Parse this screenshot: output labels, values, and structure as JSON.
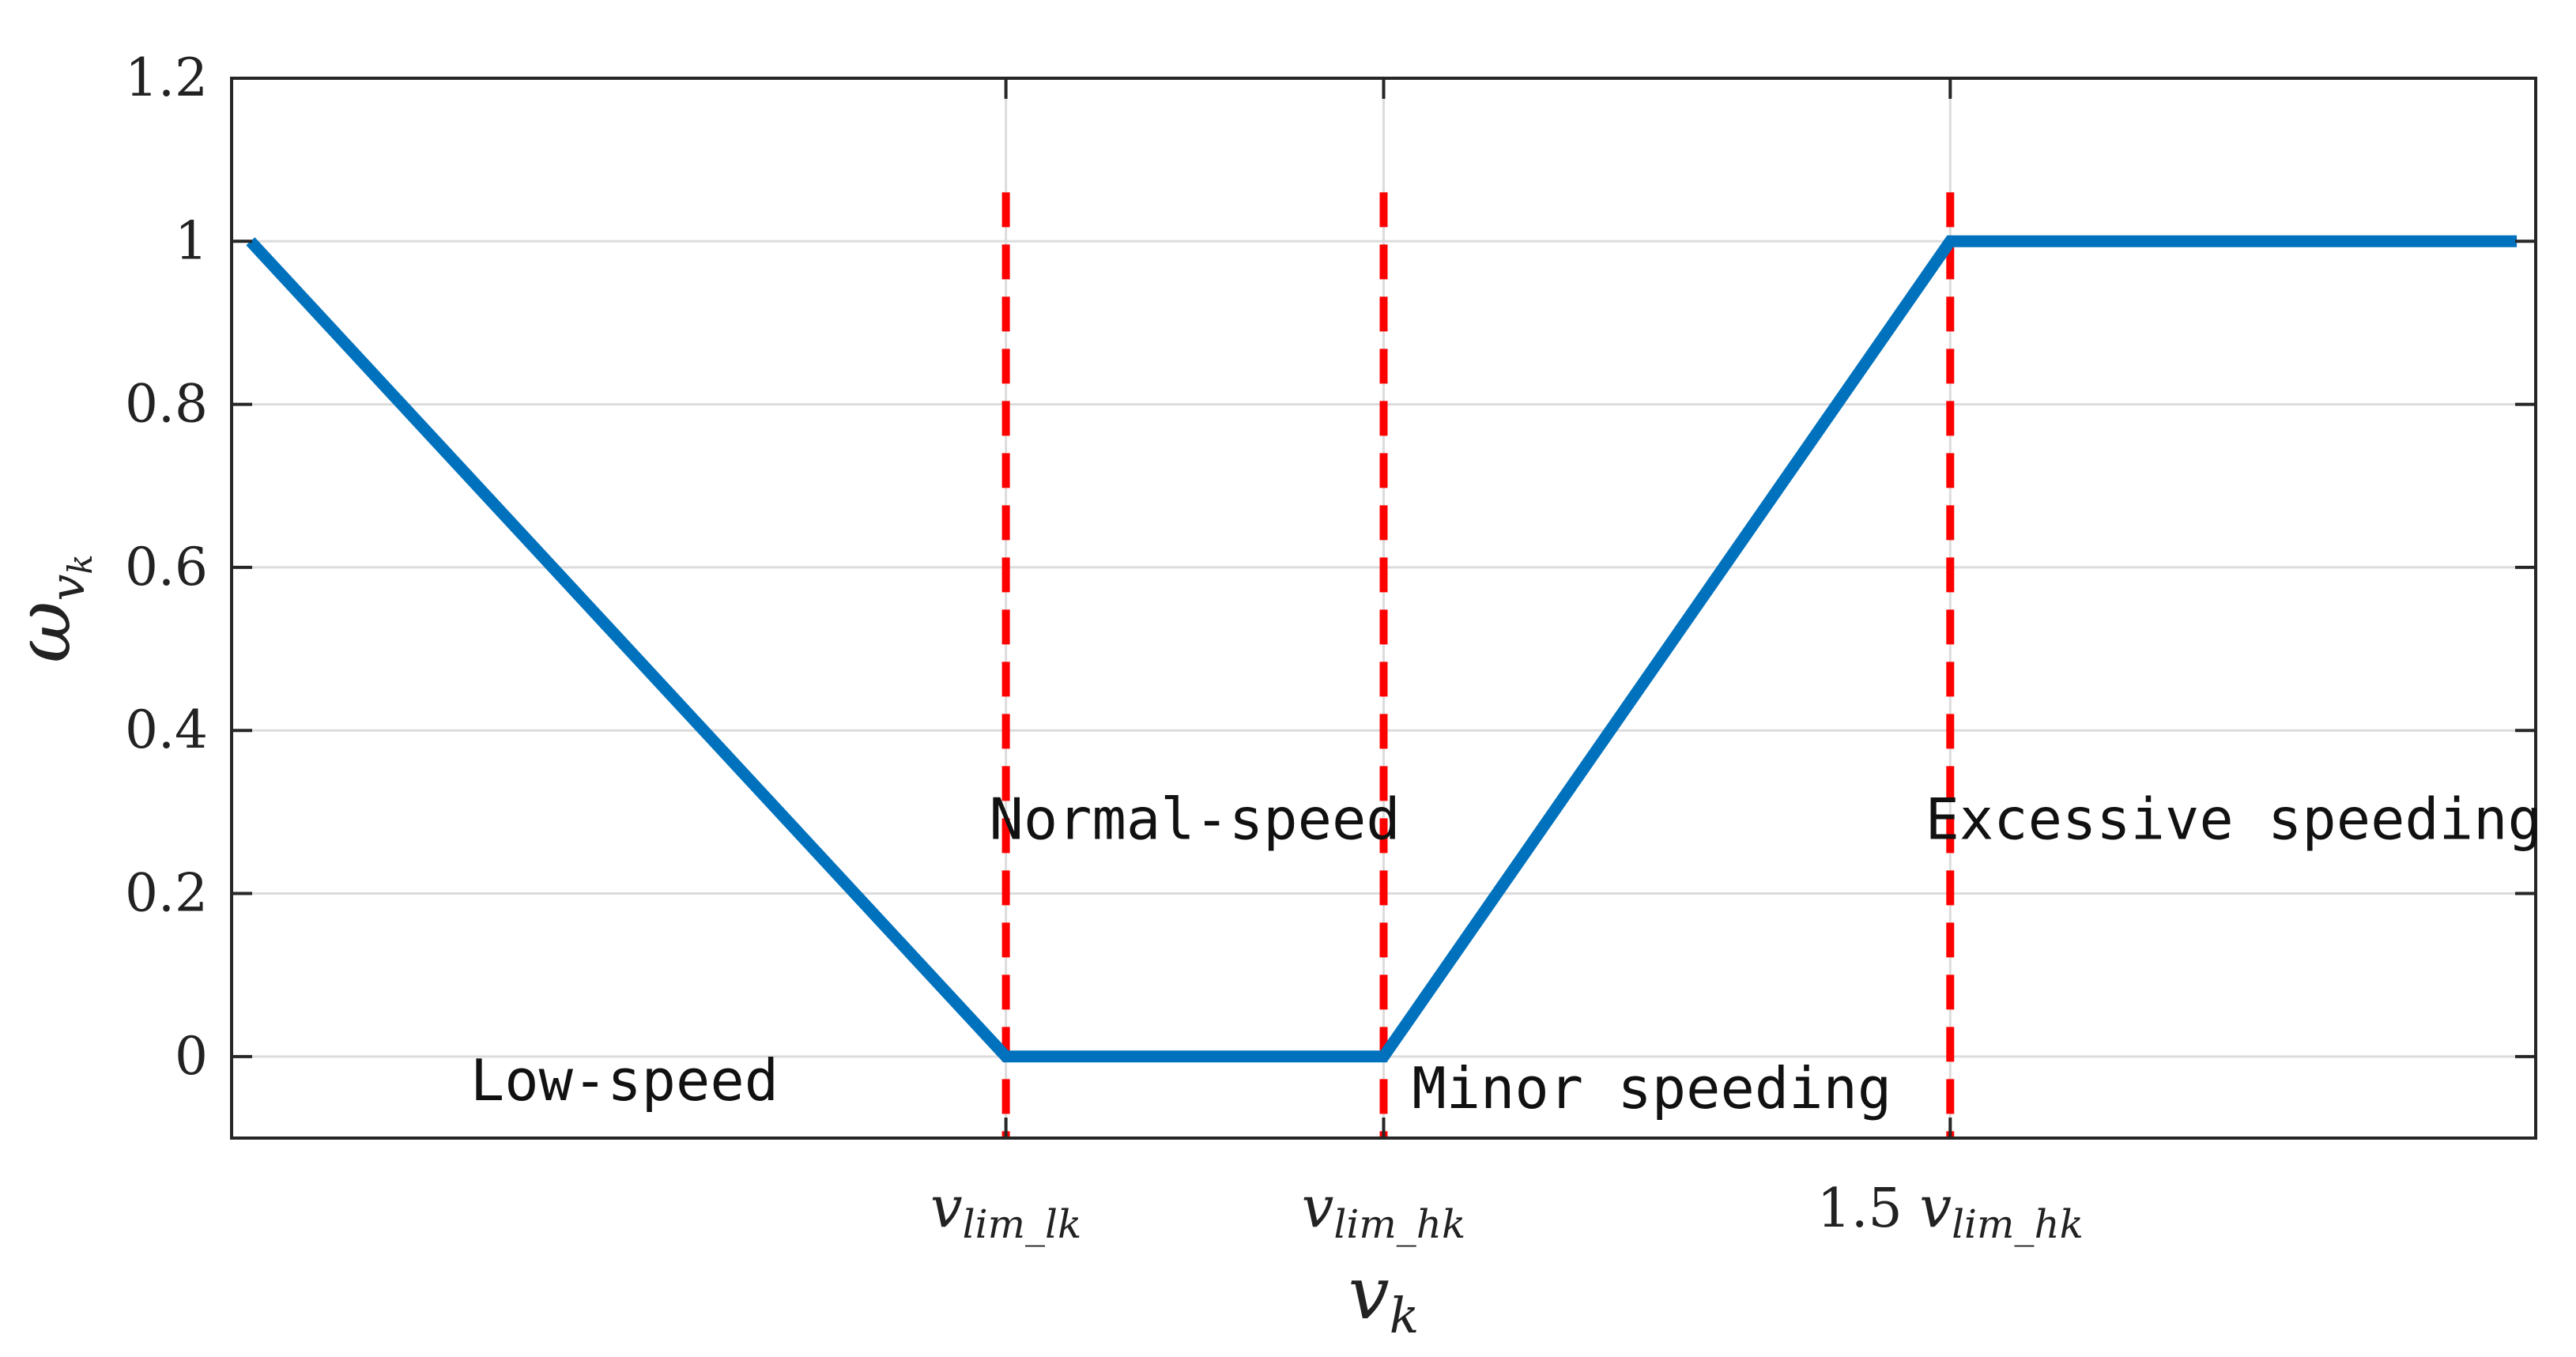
{
  "chart_data": {
    "type": "line",
    "title": "",
    "xlabel": {
      "base": "v",
      "sub": "k"
    },
    "ylabel": {
      "base": "ω",
      "sub": "v",
      "subsub": "k"
    },
    "xlim": [
      0,
      6.1
    ],
    "ylim": [
      -0.1,
      1.2
    ],
    "grid": true,
    "yticks": [
      {
        "value": 0,
        "label": "0"
      },
      {
        "value": 0.2,
        "label": "0.2"
      },
      {
        "value": 0.4,
        "label": "0.4"
      },
      {
        "value": 0.6,
        "label": "0.6"
      },
      {
        "value": 0.8,
        "label": "0.8"
      },
      {
        "value": 1,
        "label": "1"
      },
      {
        "value": 1.2,
        "label": "1.2"
      }
    ],
    "xticks": [
      {
        "value": 2.05,
        "prefix": "",
        "base": "v",
        "sub": "lim_lk"
      },
      {
        "value": 3.05,
        "prefix": "",
        "base": "v",
        "sub": "lim_hk"
      },
      {
        "value": 4.55,
        "prefix": "1.5 ",
        "base": "v",
        "sub": "lim_hk"
      }
    ],
    "series": [
      {
        "color": "#0072BD",
        "x": [
          0.05,
          2.05,
          3.05,
          4.55,
          6.05
        ],
        "y": [
          1,
          0,
          0,
          1,
          1
        ]
      }
    ],
    "reference_lines": [
      {
        "x": 2.05,
        "y_from": -0.1,
        "y_to": 1.06,
        "color": "#FF0000",
        "style": "dashed"
      },
      {
        "x": 3.05,
        "y_from": -0.1,
        "y_to": 1.06,
        "color": "#FF0000",
        "style": "dashed"
      },
      {
        "x": 4.55,
        "y_from": -0.1,
        "y_to": 1.06,
        "color": "#FF0000",
        "style": "dashed"
      }
    ],
    "annotations": [
      {
        "text": "Low-speed",
        "x": 1.04,
        "y": -0.03
      },
      {
        "text": "Normal-speed",
        "x": 2.55,
        "y": 0.29
      },
      {
        "text": "Minor speeding",
        "x": 3.76,
        "y": -0.04
      },
      {
        "text": "Excessive speeding",
        "x": 5.3,
        "y": 0.29
      }
    ]
  }
}
